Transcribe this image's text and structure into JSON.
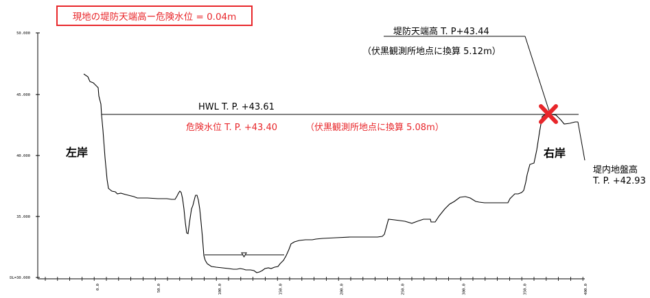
{
  "headline": "現地の堤防天端高ー危険水位 = 0.04m",
  "crest": {
    "line1": "堤防天端高 T. P+43.44",
    "line2": "（伏黒観測所地点に換算  5.12m）"
  },
  "hwl_label": "HWL T. P. +43.61",
  "danger_label": "危険水位 T. P. +43.40",
  "danger_note": "（伏黒観測所地点に換算  5.08m）",
  "left_bank": "左岸",
  "right_bank": "右岸",
  "inland": {
    "line1": "堤内地盤高",
    "line2": "T. P. +42.93"
  },
  "y_ticks": [
    "50.000",
    "45.000",
    "40.000",
    "35.000",
    "DL=30.000"
  ],
  "x_ticks": [
    "0.0",
    "50.0",
    "100.0",
    "150.0",
    "200.0",
    "250.0",
    "300.0",
    "350.0",
    "400.0"
  ],
  "colors": {
    "accent": "#e8262a",
    "line": "#000000"
  },
  "marker_icon": "red-x-icon",
  "water_icon": "water-level-triangle-icon"
}
